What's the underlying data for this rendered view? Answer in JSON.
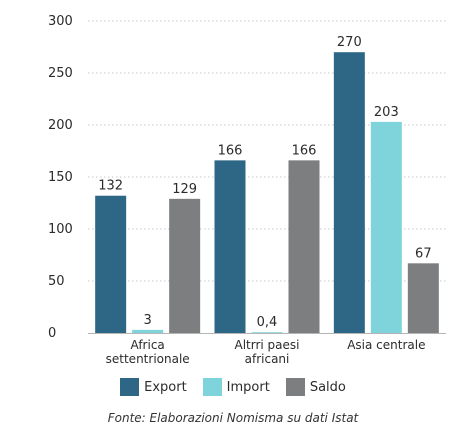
{
  "chart_data": {
    "type": "bar",
    "categories": [
      [
        "Africa",
        "settentrionale"
      ],
      [
        "Altrri paesi",
        "africani"
      ],
      [
        "Asia centrale"
      ]
    ],
    "series": [
      {
        "name": "Export",
        "color": "#2e6786",
        "values": [
          132,
          166,
          270
        ],
        "labels": [
          "132",
          "166",
          "270"
        ]
      },
      {
        "name": "Import",
        "color": "#7fd3db",
        "values": [
          3,
          0.4,
          203
        ],
        "labels": [
          "3",
          "0,4",
          "203"
        ]
      },
      {
        "name": "Saldo",
        "color": "#7c7e80",
        "values": [
          129,
          166,
          67
        ],
        "labels": [
          "129",
          "166",
          "67"
        ]
      }
    ],
    "yticks": [
      "0",
      "50",
      "100",
      "150",
      "200",
      "250",
      "300"
    ],
    "ylim": [
      0,
      300
    ],
    "grid": true,
    "legend": "bottom"
  },
  "source": "Fonte: Elaborazioni Nomisma su dati Istat"
}
